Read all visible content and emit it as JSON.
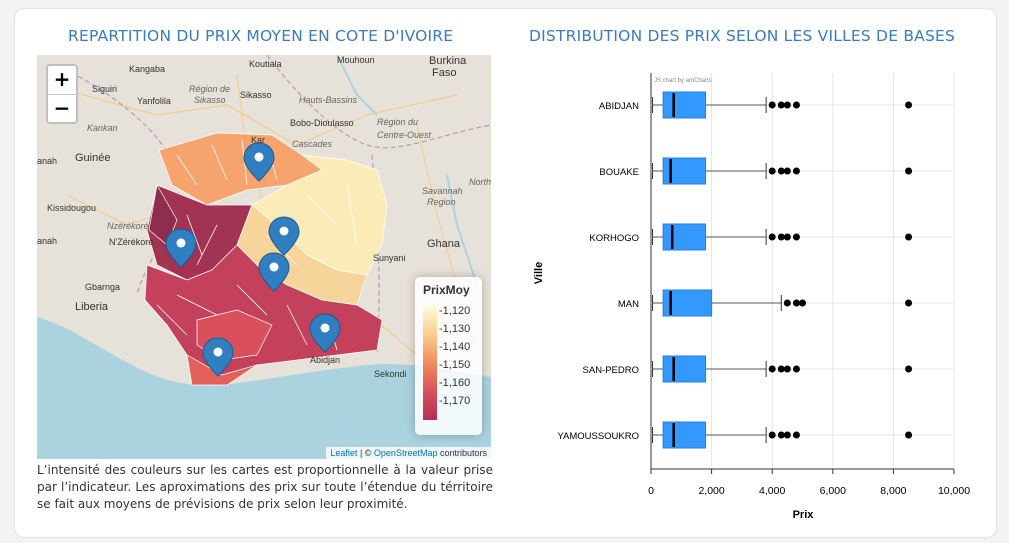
{
  "left_panel": {
    "title": "REPARTITION DU PRIX MOYEN EN COTE D'IVOIRE",
    "zoom": {
      "in": "+",
      "out": "−"
    },
    "legend": {
      "title": "PrixMoy",
      "labels": [
        "-1,120",
        "-1,130",
        "-1,140",
        "-1,150",
        "-1,160",
        "-1,170"
      ],
      "colors": [
        "#fff9cf",
        "#f8ce8c",
        "#ee8b5c",
        "#d9505c",
        "#b52e55"
      ]
    },
    "attribution": {
      "leaflet": "Leaflet",
      "sep": " | © ",
      "osm": "OpenStreetMap",
      "contrib": " contributors"
    },
    "places": {
      "kangaba": "Kangaba",
      "koutiala": "Koutiala",
      "mouhoun": "Mouhoun",
      "burkina": "Burkina",
      "faso": "Faso",
      "siguiri": "Siguiri",
      "yanfolila": "Yanfolila",
      "region1": "Région de",
      "sikasso_r": "Sikasso",
      "sikasso": "Sikasso",
      "hauts": "Hauts-Bassins",
      "bobo": "Bobo-Dioulasso",
      "kankan": "Kankan",
      "region2": "Région du",
      "centre": "Centre-Ouest",
      "kar": "Kar",
      "cascades": "Cascades",
      "anah": "anah",
      "guinee": "Guinée",
      "north": "Northe",
      "kissid": "Kissidougou",
      "nzer": "Nzérékoré",
      "nzer2": "N'Zérékoré",
      "savannah": "Savannah",
      "region3": "Region",
      "ghana": "Ghana",
      "tanah": "anah",
      "gbarnga": "Gbarnga",
      "sunyani": "Sunyani",
      "liberia": "Liberia",
      "abidjan": "Abidjan",
      "sekondi": "Sekondi"
    }
  },
  "description": "L’intensité des couleurs sur les cartes est proportionnelle à la valeur prise par l’indicateur. Les aproximations des prix sur toute l’étendue du térritoire se fait aux moyens de prévisions de prix selon leur proximité.",
  "right_panel": {
    "title": "DISTRIBUTION DES PRIX SELON LES VILLES DE BASES"
  },
  "chart_data": {
    "type": "boxplot",
    "credit": "JS chart by amCharts",
    "xlabel": "Prix",
    "ylabel": "Ville",
    "xlim": [
      0,
      10000
    ],
    "xticks": [
      0,
      2000,
      4000,
      6000,
      8000,
      10000
    ],
    "xtick_labels": [
      "0",
      "2,000",
      "4,000",
      "6,000",
      "8,000",
      "10,000"
    ],
    "box_color": "#3399ff",
    "categories": [
      "ABIDJAN",
      "BOUAKE",
      "KORHOGO",
      "MAN",
      "SAN-PEDRO",
      "YAMOUSSOUKRO"
    ],
    "series": [
      {
        "name": "ABIDJAN",
        "min": 50,
        "q1": 400,
        "median": 750,
        "q3": 1800,
        "max": 3800,
        "outliers": [
          4000,
          4300,
          4500,
          4800,
          8500
        ]
      },
      {
        "name": "BOUAKE",
        "min": 50,
        "q1": 400,
        "median": 650,
        "q3": 1800,
        "max": 3800,
        "outliers": [
          4000,
          4300,
          4500,
          4800,
          8500
        ]
      },
      {
        "name": "KORHOGO",
        "min": 50,
        "q1": 400,
        "median": 700,
        "q3": 1800,
        "max": 3800,
        "outliers": [
          4000,
          4300,
          4500,
          4800,
          8500
        ]
      },
      {
        "name": "MAN",
        "min": 50,
        "q1": 400,
        "median": 650,
        "q3": 2000,
        "max": 4300,
        "outliers": [
          4500,
          4800,
          5000,
          8500
        ]
      },
      {
        "name": "SAN-PEDRO",
        "min": 50,
        "q1": 400,
        "median": 750,
        "q3": 1800,
        "max": 3800,
        "outliers": [
          4000,
          4300,
          4500,
          4800,
          8500
        ]
      },
      {
        "name": "YAMOUSSOUKRO",
        "min": 50,
        "q1": 400,
        "median": 750,
        "q3": 1800,
        "max": 3800,
        "outliers": [
          4000,
          4300,
          4500,
          4800,
          8500
        ]
      }
    ]
  }
}
